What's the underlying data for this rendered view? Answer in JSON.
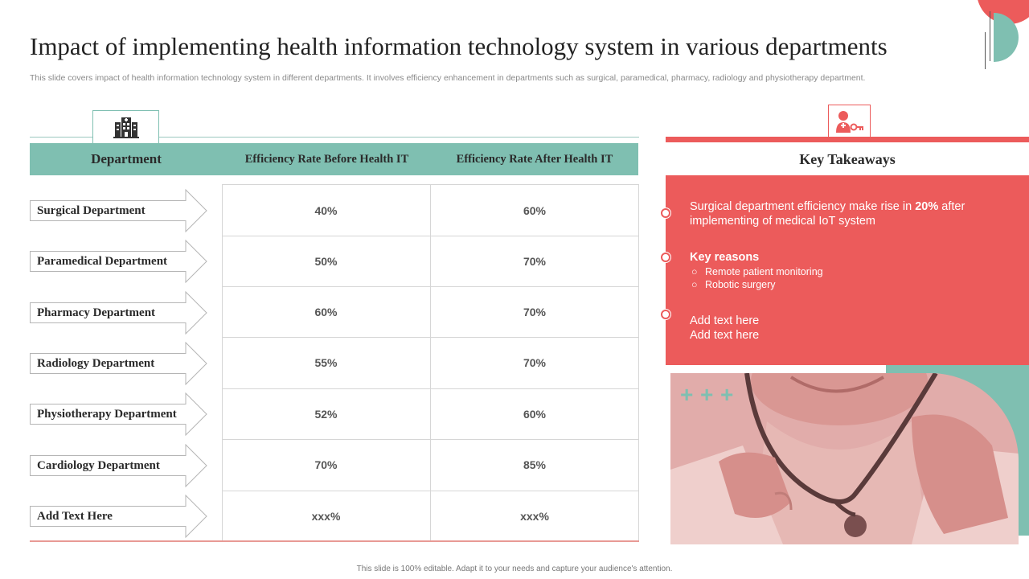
{
  "header": {
    "title": "Impact of implementing health information technology system in various departments",
    "subtitle": "This slide covers impact of health information technology system in different departments. It involves efficiency enhancement in departments such as surgical, paramedical, pharmacy, radiology and physiotherapy department."
  },
  "table": {
    "icon": "hospital-building-icon",
    "columns": [
      "Department",
      "Efficiency  Rate Before Health IT",
      "Efficiency  Rate After Health IT"
    ],
    "rows": [
      {
        "department": "Surgical  Department",
        "before": "40%",
        "after": "60%"
      },
      {
        "department": "Paramedical  Department",
        "before": "50%",
        "after": "70%"
      },
      {
        "department": "Pharmacy  Department",
        "before": "60%",
        "after": "70%"
      },
      {
        "department": "Radiology Department",
        "before": "55%",
        "after": "70%"
      },
      {
        "department": "Physiotherapy  Department",
        "before": "52%",
        "after": "60%"
      },
      {
        "department": "Cardiology  Department",
        "before": "70%",
        "after": "85%"
      },
      {
        "department": "Add Text Here",
        "before": "xxx%",
        "after": "xxx%"
      }
    ]
  },
  "takeaways": {
    "icon": "doctor-key-icon",
    "title": "Key Takeaways",
    "point1_pre": "Surgical department efficiency make rise in ",
    "point1_bold": "20%",
    "point1_post": " after implementing of medical IoT system",
    "reasons_title": "Key reasons",
    "reasons": [
      "Remote patient monitoring",
      "Robotic surgery"
    ],
    "add_text_1": "Add text here",
    "add_text_2": "Add text here"
  },
  "image": {
    "subject": "doctor-with-stethoscope-photo",
    "plus_signs": [
      "+",
      "+",
      "+"
    ]
  },
  "colors": {
    "accent_red": "#ec5b5b",
    "accent_teal": "#7fbfb1"
  },
  "footer": {
    "text": "This slide is 100% editable. Adapt it to your needs and capture your audience's attention."
  }
}
